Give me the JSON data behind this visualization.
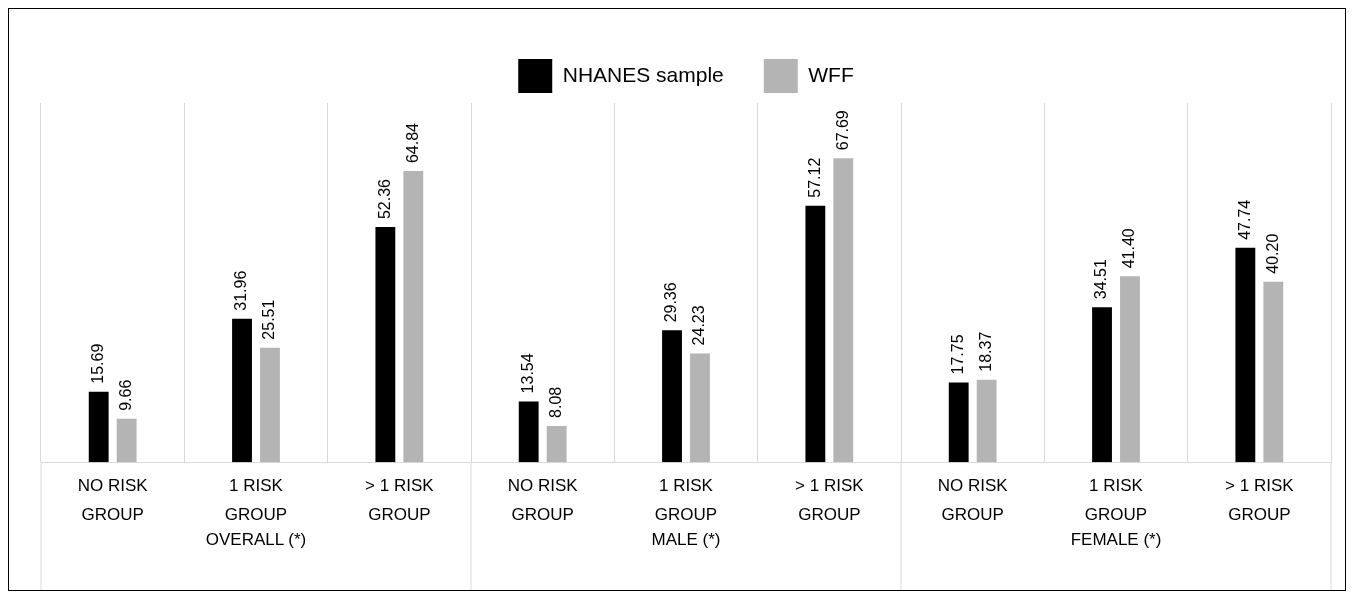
{
  "chart_data": {
    "type": "bar",
    "categories": [
      "NO RISK GROUP",
      "1 RISK GROUP",
      "> 1 RISK GROUP",
      "NO RISK GROUP",
      "1 RISK GROUP",
      "> 1 RISK GROUP",
      "NO RISK GROUP",
      "1 RISK GROUP",
      "> 1 RISK GROUP"
    ],
    "series": [
      {
        "name": "NHANES sample",
        "color": "#000000",
        "values": [
          15.69,
          31.96,
          52.36,
          13.54,
          29.36,
          57.12,
          17.75,
          34.51,
          47.74
        ],
        "value_labels": [
          "15.69",
          "31.96",
          "52.36",
          "13.54",
          "29.36",
          "57.12",
          "17.75",
          "34.51",
          "47.74"
        ]
      },
      {
        "name": "WFF",
        "color": "#b4b4b4",
        "values": [
          9.66,
          25.51,
          64.84,
          8.08,
          24.23,
          67.69,
          18.37,
          41.4,
          40.2
        ],
        "value_labels": [
          "9.66",
          "25.51",
          "64.84",
          "8.08",
          "24.23",
          "67.69",
          "18.37",
          "41.40",
          "40.20"
        ]
      }
    ],
    "annotations": [
      "OVERALL (*)",
      "MALE (*)",
      "FEMALE (*)"
    ],
    "grid": "x",
    "legend": "top",
    "tick_labels": "x"
  }
}
